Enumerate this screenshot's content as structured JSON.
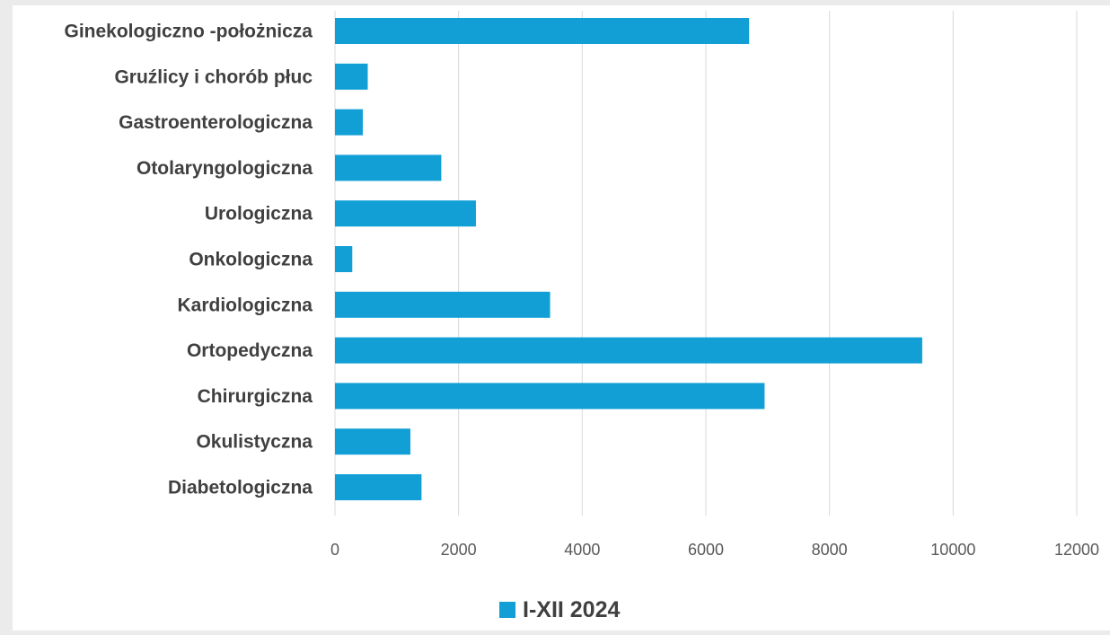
{
  "chart_data": {
    "type": "bar",
    "orientation": "horizontal",
    "title": "",
    "xlabel": "",
    "ylabel": "",
    "xlim": [
      0,
      12000
    ],
    "ticks": [
      "0",
      "2000",
      "4000",
      "6000",
      "8000",
      "10000",
      "12000"
    ],
    "grid": true,
    "legend_position": "bottom",
    "categories": [
      "Ginekologiczno -położnicza",
      "Gruźlicy i chorób płuc",
      "Gastroenterologiczna",
      "Otolaryngologiczna",
      "Urologiczna",
      "Onkologiczna",
      "Kardiologiczna",
      "Ortopedyczna",
      "Chirurgiczna",
      "Okulistyczna",
      "Diabetologiczna"
    ],
    "series": [
      {
        "name": "I-XII 2024",
        "color": "#119fd6",
        "values": [
          6700,
          530,
          450,
          1720,
          2280,
          280,
          3480,
          9500,
          6950,
          1220,
          1400
        ]
      }
    ]
  }
}
